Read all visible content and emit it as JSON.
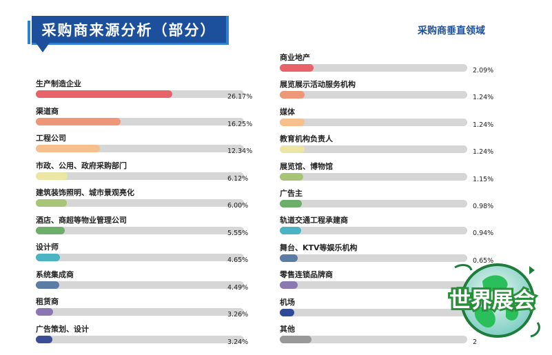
{
  "header": {
    "title": "采购商来源分析（部分）",
    "subtitle": "采购商垂直领域"
  },
  "chart_data": [
    {
      "type": "bar",
      "orientation": "horizontal",
      "title": "采购商来源分析（部分）",
      "xlim": [
        0,
        40
      ],
      "categories": [
        "生产制造企业",
        "渠道商",
        "工程公司",
        "市政、公用、政府采购部门",
        "建筑装饰照明、城市景观亮化",
        "酒店、商超等物业管理公司",
        "设计师",
        "系统集成商",
        "租赁商",
        "广告策划、设计"
      ],
      "values": [
        26.17,
        16.25,
        12.34,
        6.12,
        6.0,
        5.55,
        4.65,
        4.49,
        3.26,
        3.24
      ],
      "value_labels": [
        "26.17%",
        "16.25%",
        "12.34%",
        "6.12%",
        "6.00%",
        "5.55%",
        "4.65%",
        "4.49%",
        "3.26%",
        "3.24%"
      ],
      "colors": [
        "#e8626a",
        "#ee9678",
        "#f6c08e",
        "#ece6a4",
        "#a8c476",
        "#6dae6a",
        "#4cb3c2",
        "#5b7ca4",
        "#8c78b0",
        "#3a4e96"
      ]
    },
    {
      "type": "bar",
      "orientation": "horizontal",
      "title": "采购商垂直领域",
      "xlim": [
        0,
        40
      ],
      "categories": [
        "商业地产",
        "展览展示活动服务机构",
        "媒体",
        "教育机构负责人",
        "展览馆、博物馆",
        "广告主",
        "轨道交通工程承建商",
        "舞台、KTV等娱乐机构",
        "零售连锁品牌商",
        "机场",
        "其他"
      ],
      "values": [
        2.09,
        1.24,
        1.24,
        1.24,
        1.15,
        0.98,
        0.94,
        0.65,
        null,
        null,
        null
      ],
      "value_labels": [
        "2.09%",
        "1.24%",
        "1.24%",
        "1.24%",
        "1.15%",
        "0.98%",
        "0.94%",
        "0.65%",
        "",
        "",
        "2"
      ],
      "bar_estimates": [
        2.09,
        1.24,
        1.24,
        1.24,
        1.15,
        0.98,
        0.94,
        0.65,
        0.6,
        0.3,
        1.9
      ],
      "colors": [
        "#e8626a",
        "#ee9678",
        "#f6c08e",
        "#ece6a4",
        "#a8c476",
        "#6dae6a",
        "#4cb3c2",
        "#5b7ca4",
        "#8c78b0",
        "#2f4a96",
        "#999999"
      ]
    }
  ],
  "watermark": {
    "text": "世界展会",
    "icon": "globe-logo-icon",
    "color": "#2a8f3a"
  }
}
